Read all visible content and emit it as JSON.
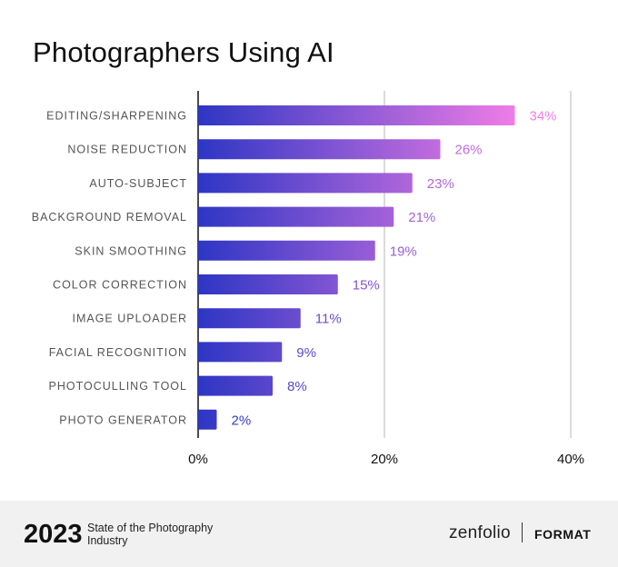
{
  "chart_data": {
    "type": "bar",
    "orientation": "horizontal",
    "title": "Photographers Using AI",
    "categories": [
      "EDITING/SHARPENING",
      "NOISE REDUCTION",
      "AUTO-SUBJECT",
      "BACKGROUND REMOVAL",
      "SKIN SMOOTHING",
      "COLOR CORRECTION",
      "IMAGE UPLOADER",
      "FACIAL RECOGNITION",
      "PHOTOCULLING TOOL",
      "PHOTO GENERATOR"
    ],
    "values": [
      34,
      26,
      23,
      21,
      19,
      15,
      11,
      9,
      8,
      2
    ],
    "value_labels": [
      "34%",
      "26%",
      "23%",
      "21%",
      "19%",
      "15%",
      "11%",
      "9%",
      "8%",
      "2%"
    ],
    "xlim": [
      0,
      40
    ],
    "xticks": [
      0,
      20,
      40
    ],
    "xtick_labels": [
      "0%",
      "20%",
      "40%"
    ],
    "grid": true,
    "colors": {
      "bar_start": "#2d36c4",
      "bar_end": "#f07de6",
      "grid": "#cfcfcf",
      "axis": "#111111",
      "category_label": "#555555"
    }
  },
  "footer": {
    "year": "2023",
    "subtitle": "State of the Photography Industry",
    "brand_1": "zenfolio",
    "brand_2": "FORMAT"
  }
}
